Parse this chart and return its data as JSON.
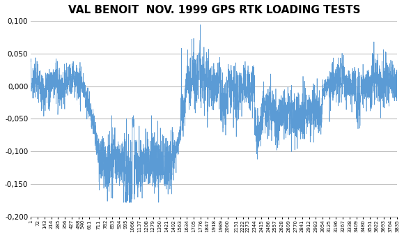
{
  "title": "VAL BENOIT  NOV. 1999 GPS RTK LOADING TESTS",
  "title_fontsize": 11,
  "title_fontweight": "bold",
  "line_color": "#5b9bd5",
  "background_color": "#ffffff",
  "ylim": [
    -0.2,
    0.1
  ],
  "yticks": [
    -0.2,
    -0.15,
    -0.1,
    -0.05,
    0.0,
    0.05,
    0.1
  ],
  "grid_color": "#c0c0c0",
  "n_points": 3835,
  "x_tick_positions": [
    1,
    72,
    143,
    214,
    285,
    356,
    427,
    498,
    540,
    611,
    711,
    782,
    853,
    924,
    995,
    1066,
    1137,
    1208,
    1279,
    1350,
    1421,
    1492,
    1563,
    1634,
    1705,
    1776,
    1847,
    1918,
    1989,
    2060,
    2151,
    2222,
    2273,
    2344,
    2415,
    2486,
    2557,
    2628,
    2699,
    2770,
    2841,
    2912,
    2983,
    3054,
    3125,
    3196,
    3267,
    3338,
    3409,
    3480,
    3551,
    3622,
    3693,
    3764,
    3835
  ],
  "x_tick_labels": [
    "1",
    "72",
    "143",
    "214",
    "285",
    "356",
    "427",
    "498",
    "540",
    "611",
    "711",
    "782",
    "853",
    "924",
    "995",
    "1066",
    "1137",
    "1208",
    "1279",
    "1350",
    "1421",
    "1492",
    "1563",
    "1634",
    "1705",
    "1776",
    "1847",
    "1918",
    "1989",
    "2060",
    "2151",
    "2222",
    "2273",
    "2344",
    "2415",
    "2486",
    "2557",
    "2628",
    "2699",
    "2770",
    "2841",
    "2912",
    "2983",
    "3054",
    "3125",
    "3196",
    "3267",
    "3338",
    "3409",
    "3480",
    "3551",
    "3622",
    "3693",
    "3764",
    "3835"
  ]
}
